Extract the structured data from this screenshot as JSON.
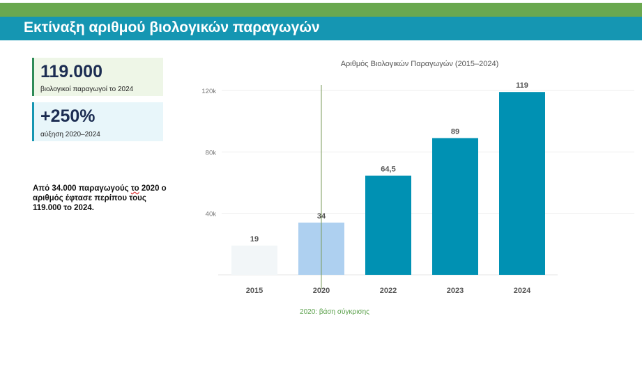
{
  "header": {
    "title": "Εκτίναξη αριθμού βιολογικών παραγωγών"
  },
  "kpis": [
    {
      "value": "119.000",
      "label": "βιολογικοί παραγωγοί το 2024"
    },
    {
      "value": "+250%",
      "label": "αύξηση 2020–2024"
    }
  ],
  "note": {
    "part1": "Από 34.000 παραγωγούς ",
    "underlined": "το",
    "part2": " 2020 ο αριθμός έφτασε περίπου τους 119.000 το 2024."
  },
  "colors": {
    "title_bar": "#1596b2",
    "top_bar": "#6aa84f",
    "bar_2015": "#f2f6f8",
    "bar_2020": "#aed0f0",
    "bar_main": "#0091b3",
    "marker_line": "#7a9a5a"
  },
  "chart_data": {
    "type": "bar",
    "title": "Αριθμός Βιολογικών Παραγωγών (2015–2024)",
    "categories": [
      "2015",
      "2020",
      "2022",
      "2023",
      "2024"
    ],
    "values": [
      19,
      34,
      64.5,
      89,
      119
    ],
    "data_labels": [
      "19",
      "34",
      "64,5",
      "89",
      "119"
    ],
    "units": "thousands",
    "ylim": [
      0,
      120
    ],
    "yticks": [
      40,
      80,
      120
    ],
    "ytick_labels": [
      "40k",
      "80k",
      "120k"
    ],
    "grid": true,
    "legend": "none",
    "marker": {
      "category": "2020",
      "label": "2020: βάση σύγκρισης"
    }
  }
}
